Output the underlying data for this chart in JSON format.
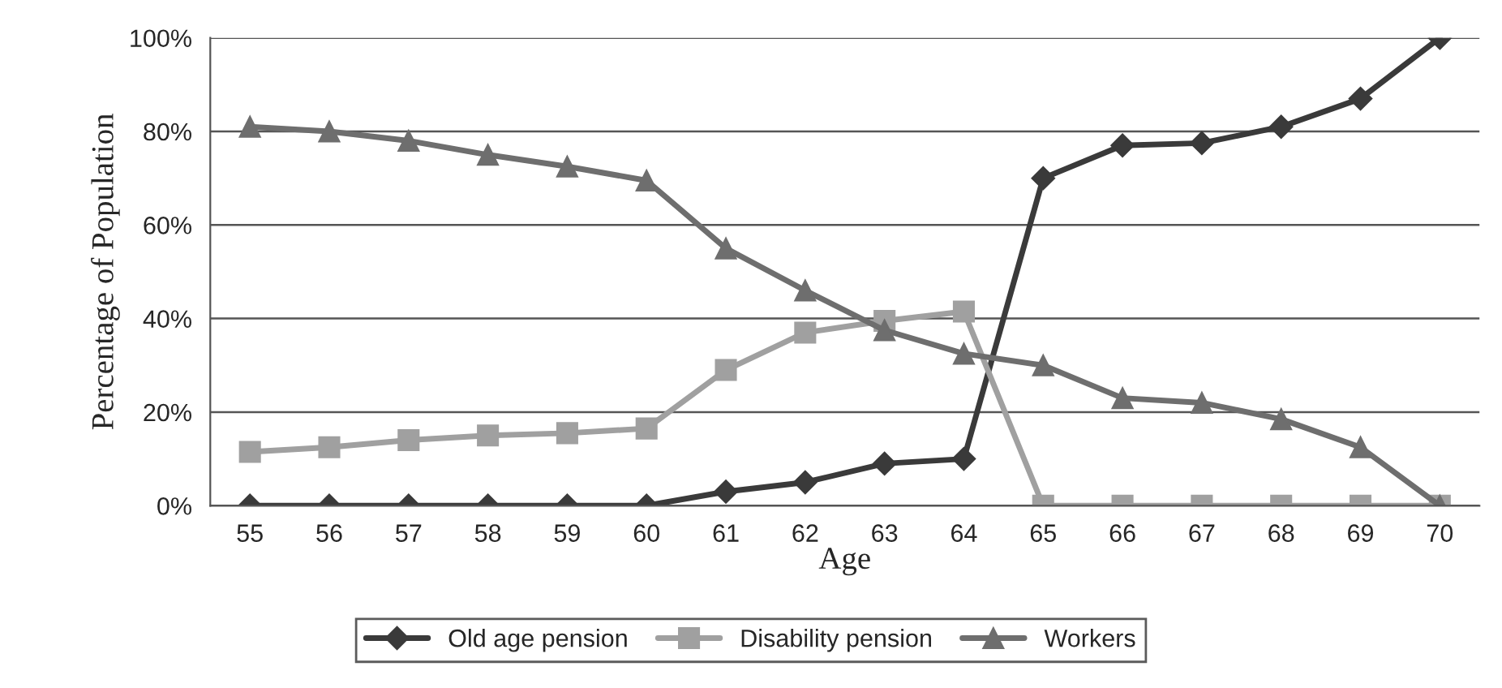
{
  "chart_data": {
    "type": "line",
    "xlabel": "Age",
    "ylabel": "Percentage of Population",
    "categories": [
      "55",
      "56",
      "57",
      "58",
      "59",
      "60",
      "61",
      "62",
      "63",
      "64",
      "65",
      "66",
      "67",
      "68",
      "69",
      "70"
    ],
    "series": [
      {
        "name": "Old age pension",
        "color": "#3a3a3a",
        "marker": "diamond",
        "values": [
          0,
          0,
          0,
          0,
          0,
          0,
          3,
          5,
          9,
          10,
          70,
          77,
          77.5,
          81,
          87,
          100
        ]
      },
      {
        "name": "Disability pension",
        "color": "#a0a0a0",
        "marker": "square",
        "values": [
          11.5,
          12.5,
          14,
          15,
          15.5,
          16.5,
          29,
          37,
          39.5,
          41.5,
          0,
          0,
          0,
          0,
          0,
          0
        ]
      },
      {
        "name": "Workers",
        "color": "#6e6e6e",
        "marker": "triangle",
        "values": [
          81,
          80,
          78,
          75,
          72.5,
          69.5,
          55,
          46,
          37.5,
          32.5,
          30,
          23,
          22,
          18.5,
          12.5,
          0
        ]
      }
    ],
    "ylim": [
      0,
      100
    ],
    "yticks": [
      {
        "value": 0,
        "label": "0%"
      },
      {
        "value": 20,
        "label": "20%"
      },
      {
        "value": 40,
        "label": "40%"
      },
      {
        "value": 60,
        "label": "60%"
      },
      {
        "value": 80,
        "label": "80%"
      },
      {
        "value": 100,
        "label": "100%"
      }
    ],
    "grid": "y",
    "legend": "bottom",
    "line_style": "solid"
  }
}
